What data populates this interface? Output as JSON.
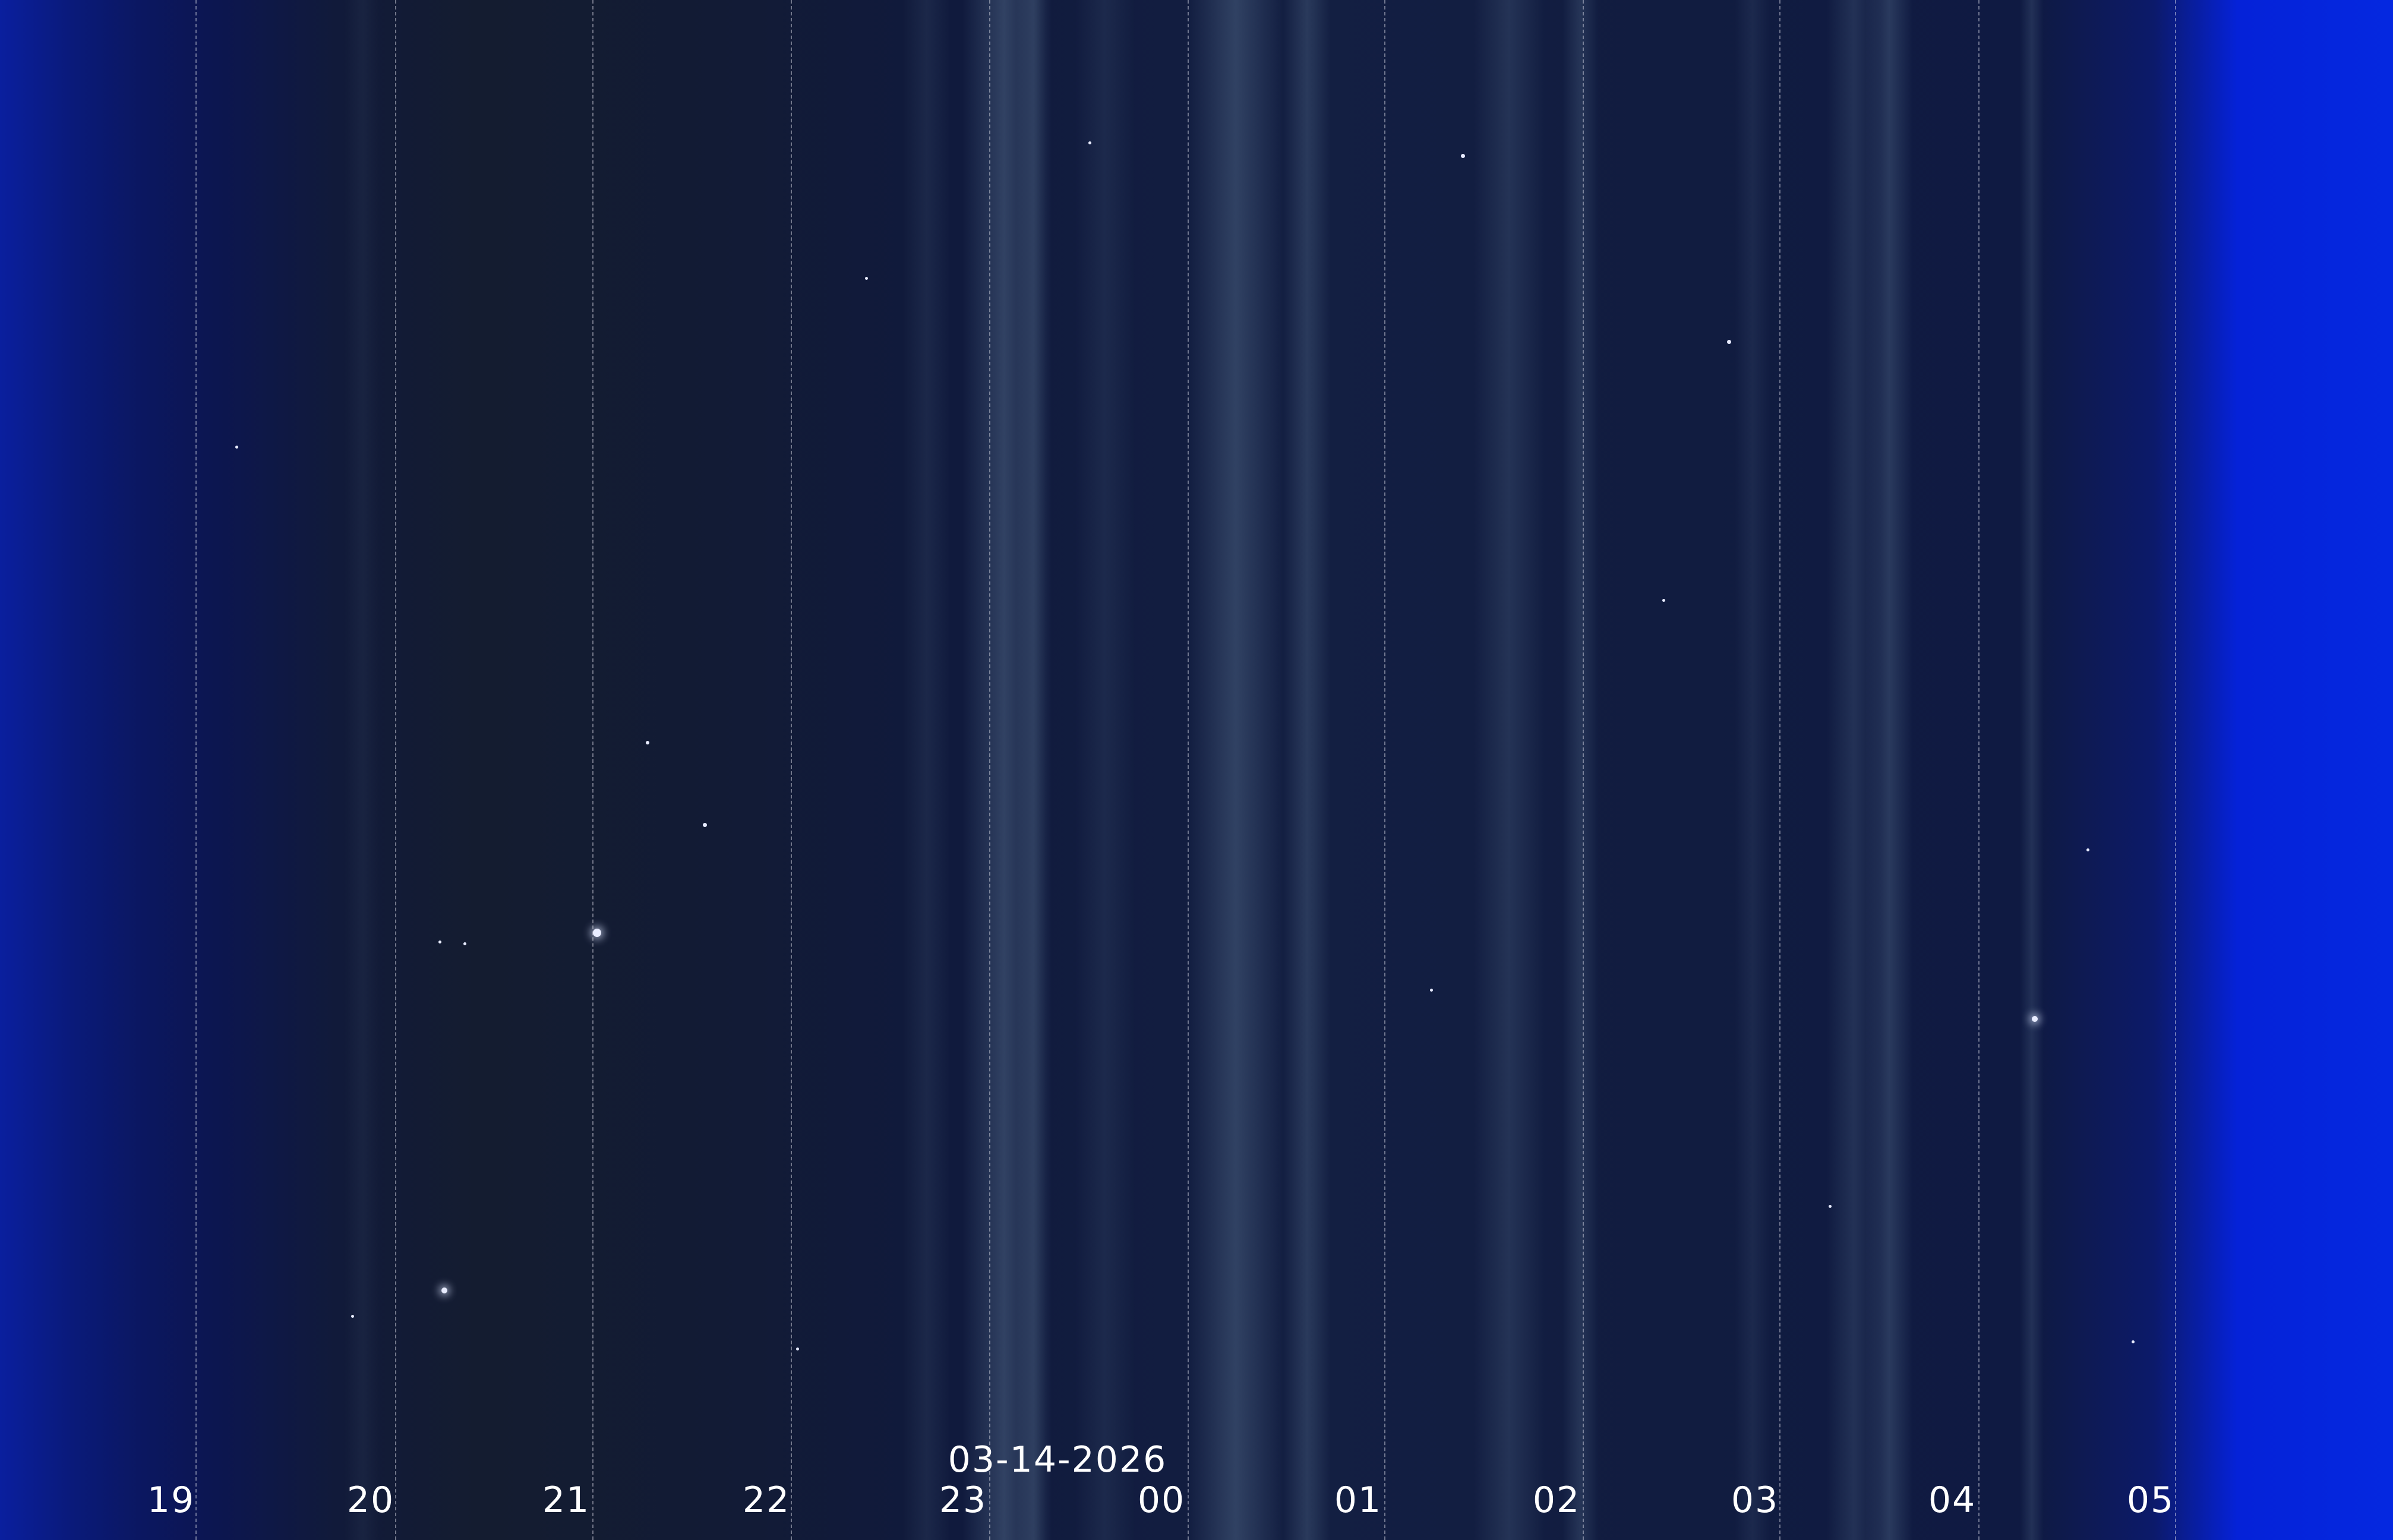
{
  "image": {
    "description_type": "keogram",
    "date": "03-14-2026",
    "hour_labels": [
      "19",
      "20",
      "21",
      "22",
      "23",
      "00",
      "01",
      "02",
      "03",
      "04",
      "05"
    ],
    "colors": {
      "edge_blue": "#0528e0",
      "night_sky": "#111a3a",
      "streak": "#6e8aa8",
      "label": "#ffffff"
    }
  }
}
